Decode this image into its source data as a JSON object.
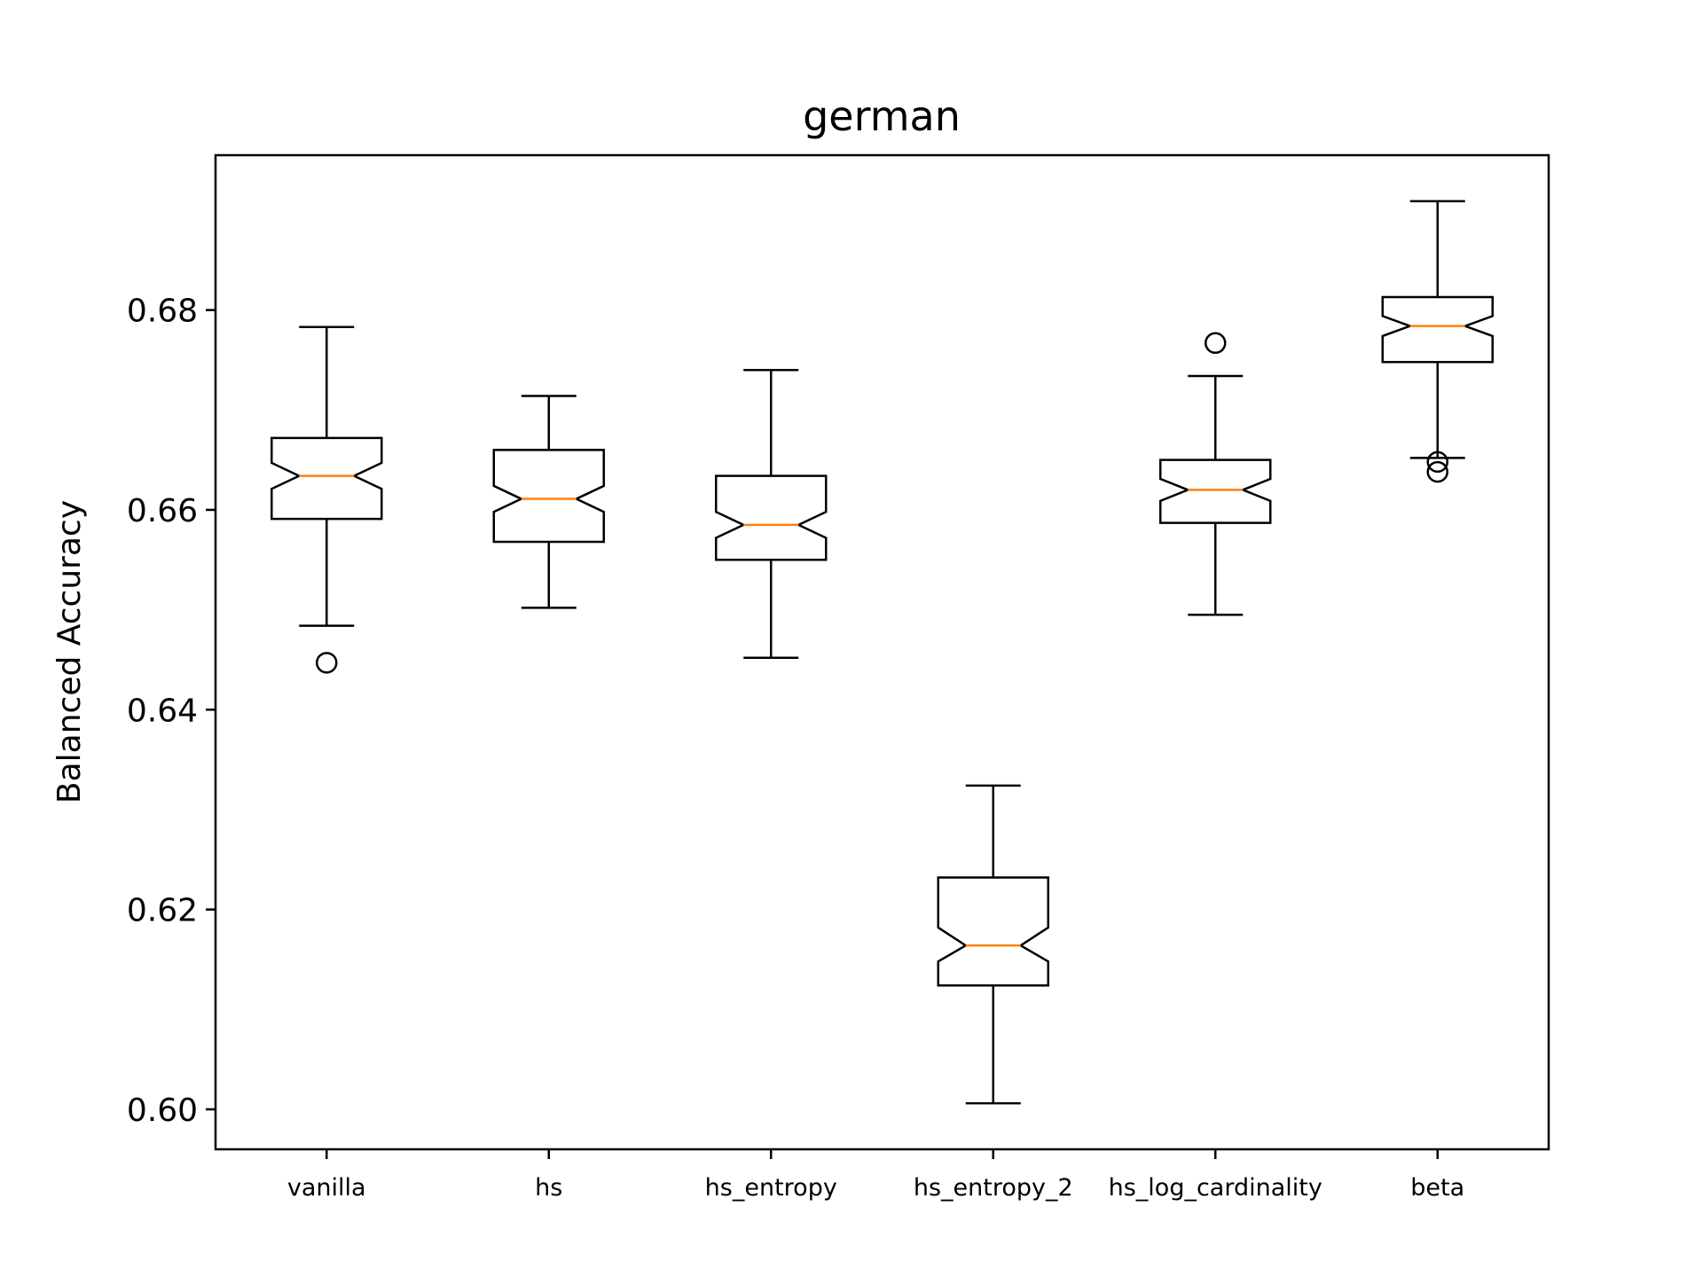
{
  "chart_data": {
    "type": "box",
    "title": "german",
    "xlabel": "",
    "ylabel": "Balanced Accuracy",
    "ylim": [
      0.596,
      0.6955
    ],
    "yticks": [
      0.6,
      0.62,
      0.64,
      0.66,
      0.68
    ],
    "ytick_labels": [
      "0.60",
      "0.62",
      "0.64",
      "0.66",
      "0.68"
    ],
    "notched": true,
    "grid": false,
    "colors": {
      "box": "#000000",
      "median": "#ff7f0e"
    },
    "categories": [
      "vanilla",
      "hs",
      "hs_entropy",
      "hs_entropy_2",
      "hs_log_cardinality",
      "beta"
    ],
    "boxes": [
      {
        "name": "vanilla",
        "whisker_low": 0.6484,
        "q1": 0.6591,
        "median": 0.6634,
        "q3": 0.6672,
        "whisker_high": 0.6783,
        "notch_low": 0.6621,
        "notch_high": 0.6647,
        "outliers": [
          0.6447
        ]
      },
      {
        "name": "hs",
        "whisker_low": 0.6502,
        "q1": 0.6568,
        "median": 0.6611,
        "q3": 0.666,
        "whisker_high": 0.6714,
        "notch_low": 0.6598,
        "notch_high": 0.6624,
        "outliers": []
      },
      {
        "name": "hs_entropy",
        "whisker_low": 0.6452,
        "q1": 0.655,
        "median": 0.6585,
        "q3": 0.6634,
        "whisker_high": 0.674,
        "notch_low": 0.6572,
        "notch_high": 0.6598,
        "outliers": []
      },
      {
        "name": "hs_entropy_2",
        "whisker_low": 0.6006,
        "q1": 0.6124,
        "median": 0.6164,
        "q3": 0.6232,
        "whisker_high": 0.6324,
        "notch_low": 0.6148,
        "notch_high": 0.6182,
        "outliers": []
      },
      {
        "name": "hs_log_cardinality",
        "whisker_low": 0.6495,
        "q1": 0.6587,
        "median": 0.662,
        "q3": 0.665,
        "whisker_high": 0.6734,
        "notch_low": 0.6609,
        "notch_high": 0.6631,
        "outliers": [
          0.6767
        ]
      },
      {
        "name": "beta",
        "whisker_low": 0.6652,
        "q1": 0.6748,
        "median": 0.6784,
        "q3": 0.6813,
        "whisker_high": 0.6909,
        "notch_low": 0.6774,
        "notch_high": 0.6794,
        "outliers": [
          0.6648,
          0.6638
        ]
      }
    ]
  }
}
